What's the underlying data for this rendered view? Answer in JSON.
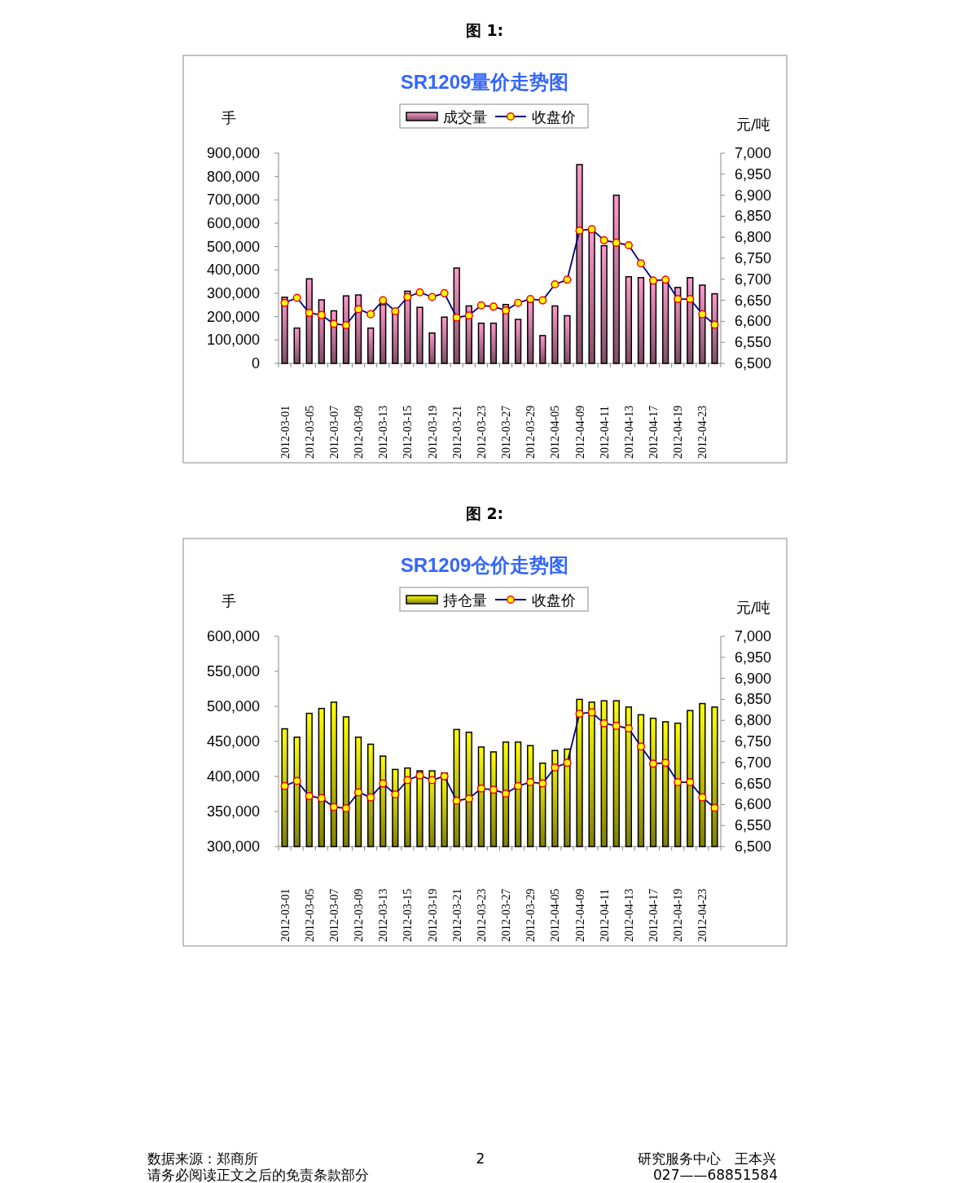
{
  "chart_data": [
    {
      "type": "bar",
      "title": "SR1209量价走势图",
      "ylabel": "手",
      "y2label": "元/吨",
      "legend": "top",
      "grid": false,
      "annotations": [
        "图 1:"
      ],
      "categories": [
        "2012-03-01",
        null,
        "2012-03-05",
        null,
        "2012-03-07",
        null,
        "2012-03-09",
        null,
        "2012-03-13",
        null,
        "2012-03-15",
        null,
        "2012-03-19",
        null,
        "2012-03-21",
        null,
        "2012-03-23",
        null,
        "2012-03-27",
        null,
        "2012-03-29",
        null,
        "2012-04-05",
        null,
        "2012-04-09",
        null,
        "2012-04-11",
        null,
        "2012-04-13",
        null,
        "2012-04-17",
        null,
        "2012-04-19",
        null,
        "2012-04-23",
        null
      ],
      "series": [
        {
          "name": "成交量",
          "color": "#ff99cc",
          "values": [
            283000,
            151000,
            362000,
            272000,
            225000,
            289000,
            293000,
            151000,
            251000,
            221000,
            309000,
            240000,
            130000,
            198000,
            408000,
            246000,
            172000,
            172000,
            252000,
            188000,
            263000,
            119000,
            246000,
            204000,
            851000,
            574000,
            504000,
            720000,
            371000,
            367000,
            360000,
            360000,
            325000,
            367000,
            335000,
            298000
          ]
        },
        {
          "name": "收盘价",
          "type": "line",
          "axis": "y2",
          "color": "#000080",
          "marker": "circle",
          "values": [
            6644,
            6656,
            6620,
            6615,
            6594,
            6591,
            6629,
            6617,
            6650,
            6624,
            6658,
            6669,
            6658,
            6667,
            6609,
            6614,
            6638,
            6635,
            6626,
            6644,
            6653,
            6650,
            6688,
            6699,
            6816,
            6819,
            6793,
            6787,
            6781,
            6738,
            6697,
            6699,
            6653,
            6653,
            6617,
            6592
          ]
        }
      ],
      "ylim": [
        0,
        900000
      ],
      "yticks": [
        0,
        {
          "value": 100000,
          "label": "100,000"
        },
        {
          "value": 200000,
          "label": "200,000"
        },
        {
          "value": 300000,
          "label": "300,000"
        },
        {
          "value": 400000,
          "label": "400,000"
        },
        {
          "value": 500000,
          "label": "500,000"
        },
        {
          "value": 600000,
          "label": "600,000"
        },
        {
          "value": 700000,
          "label": "700,000"
        },
        {
          "value": 800000,
          "label": "800,000"
        },
        {
          "value": 900000,
          "label": "900,000"
        }
      ],
      "y2lim": [
        6500,
        7000
      ],
      "y2ticks": [
        {
          "value": 6500,
          "label": "6,500"
        },
        {
          "value": 6550,
          "label": "6,550"
        },
        {
          "value": 6600,
          "label": "6,600"
        },
        {
          "value": 6650,
          "label": "6,650"
        },
        {
          "value": 6700,
          "label": "6,700"
        },
        {
          "value": 6750,
          "label": "6,750"
        },
        {
          "value": 6800,
          "label": "6,800"
        },
        {
          "value": 6850,
          "label": "6,850"
        },
        {
          "value": 6900,
          "label": "6,900"
        },
        {
          "value": 6950,
          "label": "6,950"
        },
        {
          "value": 7000,
          "label": "7,000"
        }
      ]
    },
    {
      "type": "bar",
      "title": "SR1209仓价走势图",
      "ylabel": "手",
      "y2label": "元/吨",
      "legend": "top",
      "grid": false,
      "annotations": [
        "图 2:",
        "数据来源：郑商所",
        "2",
        "研究服务中心　王本兴",
        "请务必阅读正文之后的免责条款部分",
        "027——68851584"
      ],
      "categories": [
        "2012-03-01",
        null,
        "2012-03-05",
        null,
        "2012-03-07",
        null,
        "2012-03-09",
        null,
        "2012-03-13",
        null,
        "2012-03-15",
        null,
        "2012-03-19",
        null,
        "2012-03-21",
        null,
        "2012-03-23",
        null,
        "2012-03-27",
        null,
        "2012-03-29",
        null,
        "2012-04-05",
        null,
        "2012-04-09",
        null,
        "2012-04-11",
        null,
        "2012-04-13",
        null,
        "2012-04-17",
        null,
        "2012-04-19",
        null,
        "2012-04-23",
        null
      ],
      "series": [
        {
          "name": "持仓量",
          "color": "#ffff00",
          "values": [
            468000,
            456000,
            490000,
            497000,
            506000,
            485000,
            456000,
            446000,
            429000,
            410000,
            412000,
            408000,
            408000,
            405000,
            467000,
            463000,
            442000,
            435000,
            449000,
            449000,
            444000,
            419000,
            437000,
            439000,
            510000,
            506000,
            508000,
            508000,
            499000,
            488000,
            483000,
            478000,
            476000,
            494000,
            504000,
            499000
          ]
        },
        {
          "name": "收盘价",
          "type": "line",
          "axis": "y2",
          "color": "#000080",
          "marker": "circle",
          "values": [
            6644,
            6656,
            6620,
            6615,
            6594,
            6591,
            6629,
            6617,
            6650,
            6624,
            6658,
            6669,
            6658,
            6667,
            6609,
            6614,
            6638,
            6635,
            6626,
            6644,
            6653,
            6650,
            6688,
            6699,
            6816,
            6819,
            6793,
            6787,
            6781,
            6738,
            6697,
            6699,
            6653,
            6653,
            6617,
            6592
          ]
        }
      ],
      "ylim": [
        300000,
        600000
      ],
      "yticks": [
        {
          "value": 300000,
          "label": "300,000"
        },
        {
          "value": 350000,
          "label": "350,000"
        },
        {
          "value": 400000,
          "label": "400,000"
        },
        {
          "value": 450000,
          "label": "450,000"
        },
        {
          "value": 500000,
          "label": "500,000"
        },
        {
          "value": 550000,
          "label": "550,000"
        },
        {
          "value": 600000,
          "label": "600,000"
        }
      ],
      "y2lim": [
        6500,
        7000
      ],
      "y2ticks": [
        {
          "value": 6500,
          "label": "6,500"
        },
        {
          "value": 6550,
          "label": "6,550"
        },
        {
          "value": 6600,
          "label": "6,600"
        },
        {
          "value": 6650,
          "label": "6,650"
        },
        {
          "value": 6700,
          "label": "6,700"
        },
        {
          "value": 6750,
          "label": "6,750"
        },
        {
          "value": 6800,
          "label": "6,800"
        },
        {
          "value": 6850,
          "label": "6,850"
        },
        {
          "value": 6900,
          "label": "6,900"
        },
        {
          "value": 6950,
          "label": "6,950"
        },
        {
          "value": 7000,
          "label": "7,000"
        }
      ]
    }
  ]
}
